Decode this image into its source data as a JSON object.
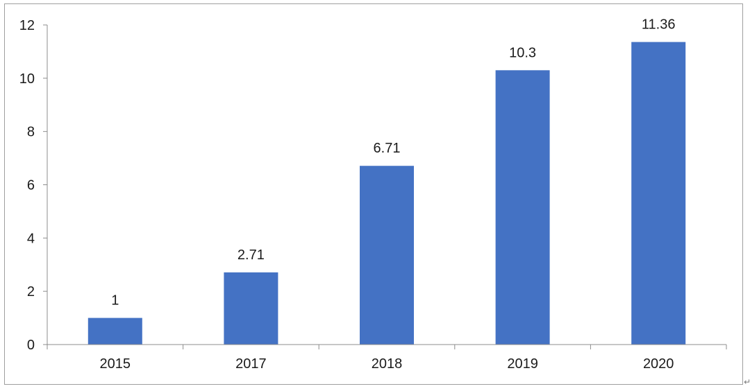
{
  "chart_data": {
    "type": "bar",
    "title": "",
    "xlabel": "",
    "ylabel": "",
    "categories": [
      "2015",
      "2017",
      "2018",
      "2019",
      "2020"
    ],
    "values": [
      1,
      2.71,
      6.71,
      10.3,
      11.36
    ],
    "data_labels": [
      "1",
      "2.71",
      "6.71",
      "10.3",
      "11.36"
    ],
    "ylim": [
      0,
      12
    ],
    "yticks": [
      0,
      2,
      4,
      6,
      8,
      10,
      12
    ],
    "ytick_labels": [
      "0",
      "2",
      "4",
      "6",
      "8",
      "10",
      "12"
    ],
    "grid": false,
    "legend": "none",
    "bar_color": "#4472C4",
    "axis_color": "#8c8c8c"
  },
  "corner_mark": "↵"
}
